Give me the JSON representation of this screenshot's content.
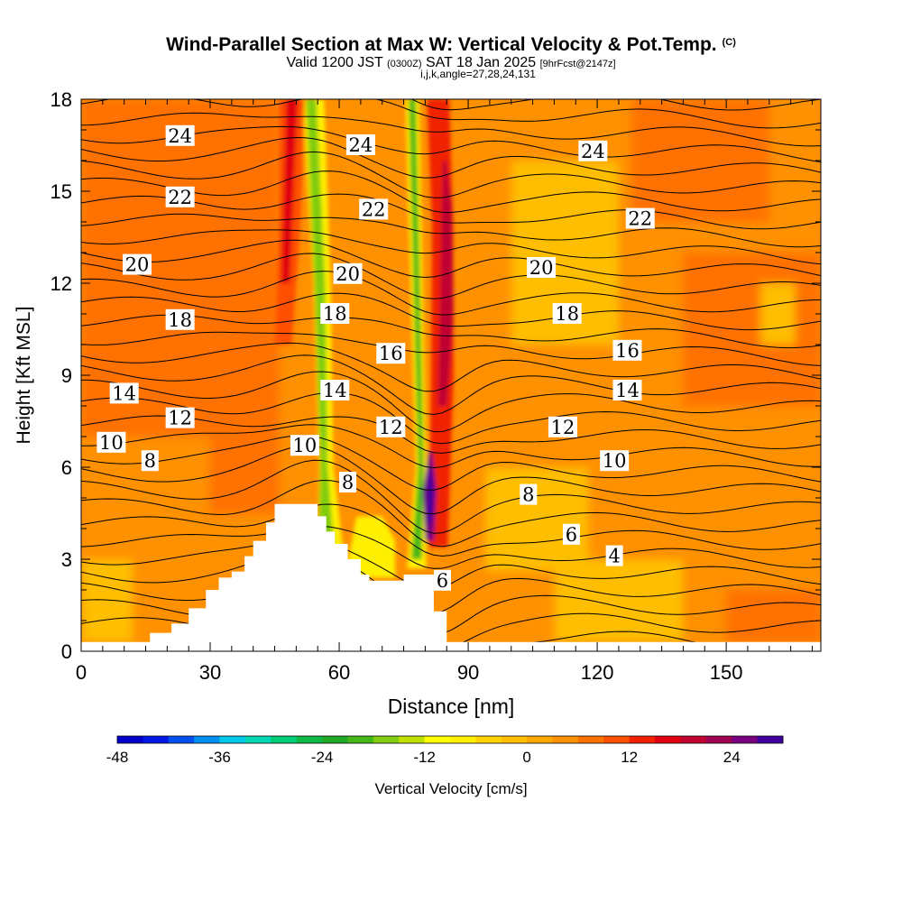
{
  "chart_data": {
    "type": "heatmap",
    "title": "Wind-Parallel Section at Max W: Vertical Velocity & Pot.Temp.",
    "title_tag": "(C)",
    "subtitle_main": "Valid 1200 JST",
    "subtitle_utc": "(0300Z)",
    "subtitle_date": "SAT 18 Jan 2025",
    "subtitle_fcst": "[9hrFcst@2147z]",
    "subtitle3": "i,j,k,angle=27,28,24,131",
    "xlabel": "Distance [nm]",
    "ylabel": "Height [Kft MSL]",
    "xlim": [
      0,
      172
    ],
    "ylim": [
      0,
      18
    ],
    "x_ticks": [
      0,
      30,
      60,
      90,
      120,
      150
    ],
    "y_ticks": [
      0,
      3,
      6,
      9,
      12,
      15,
      18
    ],
    "colorbar": {
      "label": "Vertical Velocity [cm/s]",
      "ticks": [
        -48,
        -36,
        -24,
        -12,
        0,
        12,
        24
      ],
      "min": -48,
      "max": 30,
      "step": 3,
      "colors": [
        "#0000c8",
        "#0018e6",
        "#0050f0",
        "#0090f0",
        "#00c8e8",
        "#00d8b4",
        "#00cc78",
        "#10b848",
        "#20a828",
        "#44b818",
        "#80cc10",
        "#c0e000",
        "#ffff00",
        "#fff000",
        "#ffd200",
        "#ffbe00",
        "#ffa800",
        "#ff9000",
        "#ff7200",
        "#ff5000",
        "#f02000",
        "#e00010",
        "#c00030",
        "#a00050",
        "#780080",
        "#4000a0"
      ]
    },
    "upward_motion_cores": [
      {
        "x": 49,
        "y_range": [
          10,
          18
        ],
        "peak": 12
      },
      {
        "x": 83,
        "y_range": [
          3.5,
          14
        ],
        "peak": 24
      },
      {
        "x": 81,
        "y_range": [
          3.5,
          6.5
        ],
        "peak": 30
      }
    ],
    "downward_motion_cores": [
      {
        "x": 56,
        "y_range": [
          3,
          18
        ],
        "peak": -18
      },
      {
        "x": 78,
        "y_range": [
          2.6,
          18
        ],
        "peak": -20
      },
      {
        "x": 67,
        "y_range": [
          2.4,
          4.2
        ],
        "peak": -12
      }
    ],
    "isentropes": {
      "name": "Pot.Temp.",
      "levels": [
        4,
        6,
        8,
        10,
        12,
        14,
        16,
        18,
        20,
        22,
        24
      ],
      "labels": [
        {
          "text": "24",
          "x": 23,
          "y": 16.8
        },
        {
          "text": "24",
          "x": 65,
          "y": 16.5
        },
        {
          "text": "24",
          "x": 119,
          "y": 16.3
        },
        {
          "text": "22",
          "x": 23,
          "y": 14.8
        },
        {
          "text": "22",
          "x": 68,
          "y": 14.4
        },
        {
          "text": "22",
          "x": 130,
          "y": 14.1
        },
        {
          "text": "20",
          "x": 13,
          "y": 12.6
        },
        {
          "text": "20",
          "x": 62,
          "y": 12.3
        },
        {
          "text": "20",
          "x": 107,
          "y": 12.5
        },
        {
          "text": "18",
          "x": 23,
          "y": 10.8
        },
        {
          "text": "18",
          "x": 59,
          "y": 11.0
        },
        {
          "text": "18",
          "x": 113,
          "y": 11.0
        },
        {
          "text": "16",
          "x": 72,
          "y": 9.7
        },
        {
          "text": "16",
          "x": 127,
          "y": 9.8
        },
        {
          "text": "14",
          "x": 10,
          "y": 8.4
        },
        {
          "text": "14",
          "x": 59,
          "y": 8.5
        },
        {
          "text": "14",
          "x": 127,
          "y": 8.5
        },
        {
          "text": "12",
          "x": 23,
          "y": 7.6
        },
        {
          "text": "12",
          "x": 72,
          "y": 7.3
        },
        {
          "text": "12",
          "x": 112,
          "y": 7.3
        },
        {
          "text": "10",
          "x": 7,
          "y": 6.8
        },
        {
          "text": "10",
          "x": 52,
          "y": 6.7
        },
        {
          "text": "10",
          "x": 124,
          "y": 6.2
        },
        {
          "text": "8",
          "x": 16,
          "y": 6.2
        },
        {
          "text": "8",
          "x": 62,
          "y": 5.5
        },
        {
          "text": "8",
          "x": 104,
          "y": 5.1
        },
        {
          "text": "6",
          "x": 114,
          "y": 3.8
        },
        {
          "text": "6",
          "x": 84,
          "y": 2.3
        },
        {
          "text": "4",
          "x": 124,
          "y": 3.1
        }
      ]
    },
    "terrain_kft": [
      [
        0,
        0.3
      ],
      [
        16,
        0.3
      ],
      [
        16,
        0.6
      ],
      [
        21,
        0.6
      ],
      [
        21,
        0.9
      ],
      [
        25,
        0.9
      ],
      [
        25,
        1.4
      ],
      [
        29,
        1.4
      ],
      [
        29,
        2.0
      ],
      [
        32,
        2.0
      ],
      [
        32,
        2.4
      ],
      [
        35,
        2.4
      ],
      [
        35,
        2.6
      ],
      [
        38,
        2.6
      ],
      [
        38,
        3.1
      ],
      [
        40,
        3.1
      ],
      [
        40,
        3.6
      ],
      [
        43,
        3.6
      ],
      [
        43,
        4.2
      ],
      [
        45,
        4.2
      ],
      [
        45,
        4.8
      ],
      [
        55,
        4.8
      ],
      [
        55,
        4.4
      ],
      [
        57,
        4.4
      ],
      [
        57,
        3.9
      ],
      [
        59,
        3.9
      ],
      [
        59,
        3.5
      ],
      [
        62,
        3.5
      ],
      [
        62,
        3.0
      ],
      [
        65,
        3.0
      ],
      [
        65,
        2.5
      ],
      [
        67,
        2.5
      ],
      [
        67,
        2.3
      ],
      [
        75,
        2.3
      ],
      [
        75,
        2.5
      ],
      [
        82,
        2.5
      ],
      [
        82,
        1.3
      ],
      [
        85,
        1.3
      ],
      [
        85,
        0.3
      ],
      [
        172,
        0.3
      ]
    ]
  }
}
